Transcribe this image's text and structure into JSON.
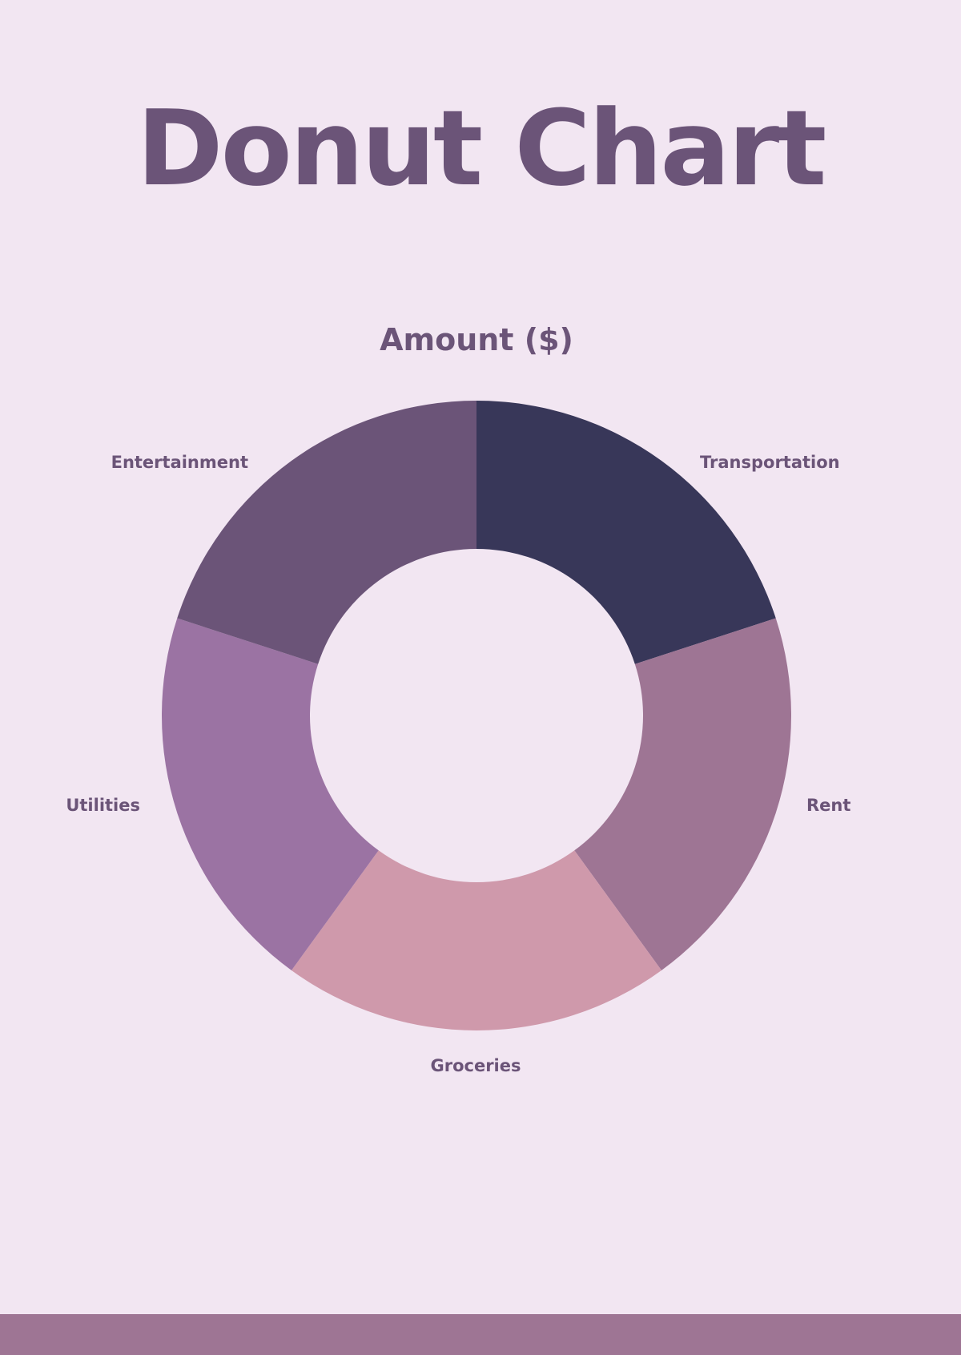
{
  "page": {
    "title": "Donut Chart"
  },
  "chart_data": {
    "type": "pie",
    "donut": true,
    "title": "Amount ($)",
    "categories": [
      "Transportation",
      "Rent",
      "Groceries",
      "Utilities",
      "Entertainment"
    ],
    "values": [
      20,
      20,
      20,
      20,
      20
    ],
    "colors": [
      "#383759",
      "#9e7594",
      "#cf99ab",
      "#9b73a3",
      "#6b5478"
    ],
    "label_color": "#6b5478",
    "start": "top",
    "direction": "clockwise",
    "legend": "none"
  },
  "colors": {
    "background": "#f2e6f2",
    "accent": "#6b5478",
    "footer": "#9e7594"
  }
}
